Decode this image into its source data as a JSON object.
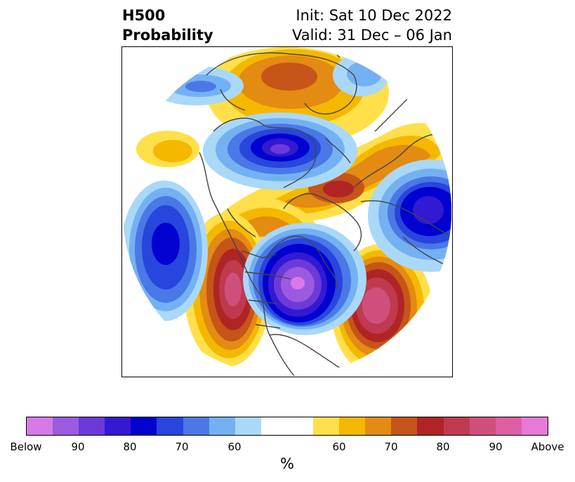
{
  "title": {
    "left_line1": "H500",
    "left_line2": "Probability",
    "right_line1": "Init: Sat 10 Dec 2022",
    "right_line2": "Valid: 31 Dec – 06 Jan"
  },
  "map": {
    "projection": "north-polar stereographic (circular)",
    "colors": {
      "below_light": "#aad8f8",
      "below_60": "#74b1f2",
      "below_70": "#4a78e6",
      "below_75": "#2746dd",
      "below_80": "#0000cf",
      "below_85": "#3419d3",
      "below_90": "#6b3ad8",
      "below_95": "#9c5ae0",
      "below_max": "#d77ae8",
      "above_light": "#ffe04a",
      "above_60": "#f5b800",
      "above_65": "#e38b12",
      "above_70": "#c55519",
      "above_80": "#b02425",
      "above_85": "#c03a4f",
      "above_90": "#cf4f7c",
      "above_max": "#e779d9",
      "coast": "#444444"
    }
  },
  "colorbar": {
    "swatches": [
      "#d77ae8",
      "#9c5ae0",
      "#6b3ad8",
      "#3419d3",
      "#0000cf",
      "#2746dd",
      "#4a78e6",
      "#74b1f2",
      "#aad8f8",
      "#ffffff",
      "#ffe04a",
      "#f5b800",
      "#e38b12",
      "#c55519",
      "#b02425",
      "#c03a4f",
      "#cf4f7c",
      "#dc5fa6",
      "#e779d9"
    ],
    "labels": [
      "Below",
      "90",
      "80",
      "70",
      "60",
      "60",
      "70",
      "80",
      "90",
      "Above"
    ],
    "unit": "%"
  }
}
